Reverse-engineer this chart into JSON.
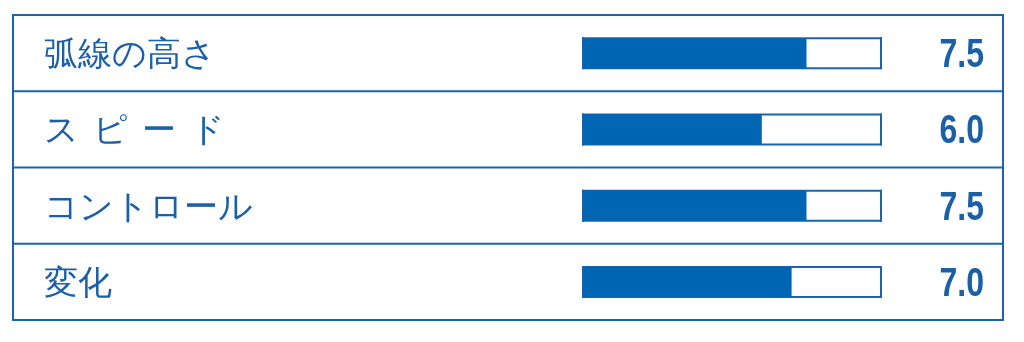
{
  "chart_data": {
    "type": "bar",
    "orientation": "horizontal",
    "categories": [
      "弧線の高さ",
      "スピード",
      "コントロール",
      "変化"
    ],
    "values": [
      7.5,
      6.0,
      7.5,
      7.0
    ],
    "value_labels": [
      "7.5",
      "6.0",
      "7.5",
      "7.0"
    ],
    "color": "#0066b3",
    "xlim": [
      0,
      10
    ]
  }
}
